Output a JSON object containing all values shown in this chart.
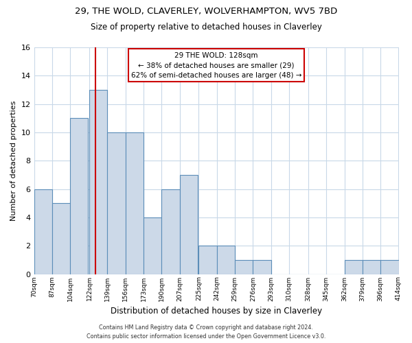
{
  "title": "29, THE WOLD, CLAVERLEY, WOLVERHAMPTON, WV5 7BD",
  "subtitle": "Size of property relative to detached houses in Claverley",
  "xlabel": "Distribution of detached houses by size in Claverley",
  "ylabel": "Number of detached properties",
  "bar_color": "#ccd9e8",
  "bar_edge_color": "#5b8db8",
  "vline_x": 128,
  "vline_color": "#cc0000",
  "annotation_title": "29 THE WOLD: 128sqm",
  "annotation_line1": "← 38% of detached houses are smaller (29)",
  "annotation_line2": "62% of semi-detached houses are larger (48) →",
  "bins_left": [
    70,
    87,
    104,
    122,
    139,
    156,
    173,
    190,
    207,
    225,
    242,
    259,
    276,
    293,
    310,
    328,
    345,
    362,
    379,
    396
  ],
  "bin_width": 17,
  "counts": [
    6,
    5,
    11,
    13,
    10,
    10,
    4,
    6,
    7,
    2,
    2,
    1,
    1,
    0,
    0,
    0,
    0,
    1,
    1,
    1
  ],
  "xtick_labels": [
    "70sqm",
    "87sqm",
    "104sqm",
    "122sqm",
    "139sqm",
    "156sqm",
    "173sqm",
    "190sqm",
    "207sqm",
    "225sqm",
    "242sqm",
    "259sqm",
    "276sqm",
    "293sqm",
    "310sqm",
    "328sqm",
    "345sqm",
    "362sqm",
    "379sqm",
    "396sqm",
    "414sqm"
  ],
  "ylim": [
    0,
    16
  ],
  "yticks": [
    0,
    2,
    4,
    6,
    8,
    10,
    12,
    14,
    16
  ],
  "footer_line1": "Contains HM Land Registry data © Crown copyright and database right 2024.",
  "footer_line2": "Contains public sector information licensed under the Open Government Licence v3.0.",
  "background_color": "#ffffff",
  "grid_color": "#c8d8e8"
}
